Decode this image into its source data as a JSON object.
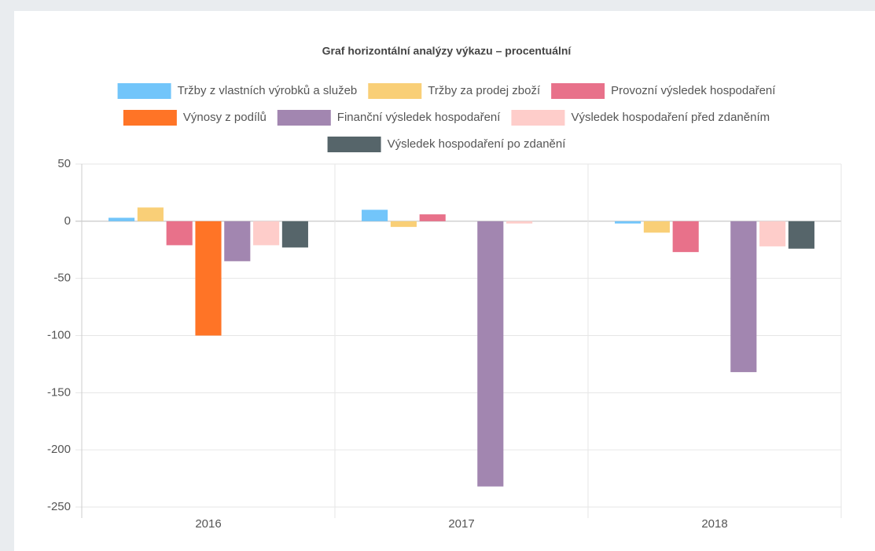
{
  "chart_data": {
    "type": "bar",
    "title": "Graf horizontální analýzy výkazu – procentuální",
    "categories": [
      "2016",
      "2017",
      "2018"
    ],
    "series": [
      {
        "name": "Tržby z vlastních výrobků a služeb",
        "color": "#72c5fa",
        "values": [
          3,
          10,
          -2
        ]
      },
      {
        "name": "Tržby za prodej zboží",
        "color": "#f9cf77",
        "values": [
          12,
          -5,
          -10
        ]
      },
      {
        "name": "Provozní výsledek hospodaření",
        "color": "#e8718a",
        "values": [
          -21,
          6,
          -27
        ]
      },
      {
        "name": "Výnosy z podílů",
        "color": "#ff7426",
        "values": [
          -100,
          0,
          0
        ]
      },
      {
        "name": "Finanční výsledek hospodaření",
        "color": "#a286b0",
        "values": [
          -35,
          -232,
          -132
        ]
      },
      {
        "name": "Výsledek hospodaření před zdaněním",
        "color": "#fecdca",
        "values": [
          -21,
          -2,
          -22
        ]
      },
      {
        "name": "Výsledek hospodaření po zdanění",
        "color": "#56656a",
        "values": [
          -23,
          0,
          -24
        ]
      }
    ],
    "ylim": [
      -250,
      50
    ],
    "yticks": [
      -250,
      -200,
      -150,
      -100,
      -50,
      0,
      50
    ],
    "grid": true
  }
}
